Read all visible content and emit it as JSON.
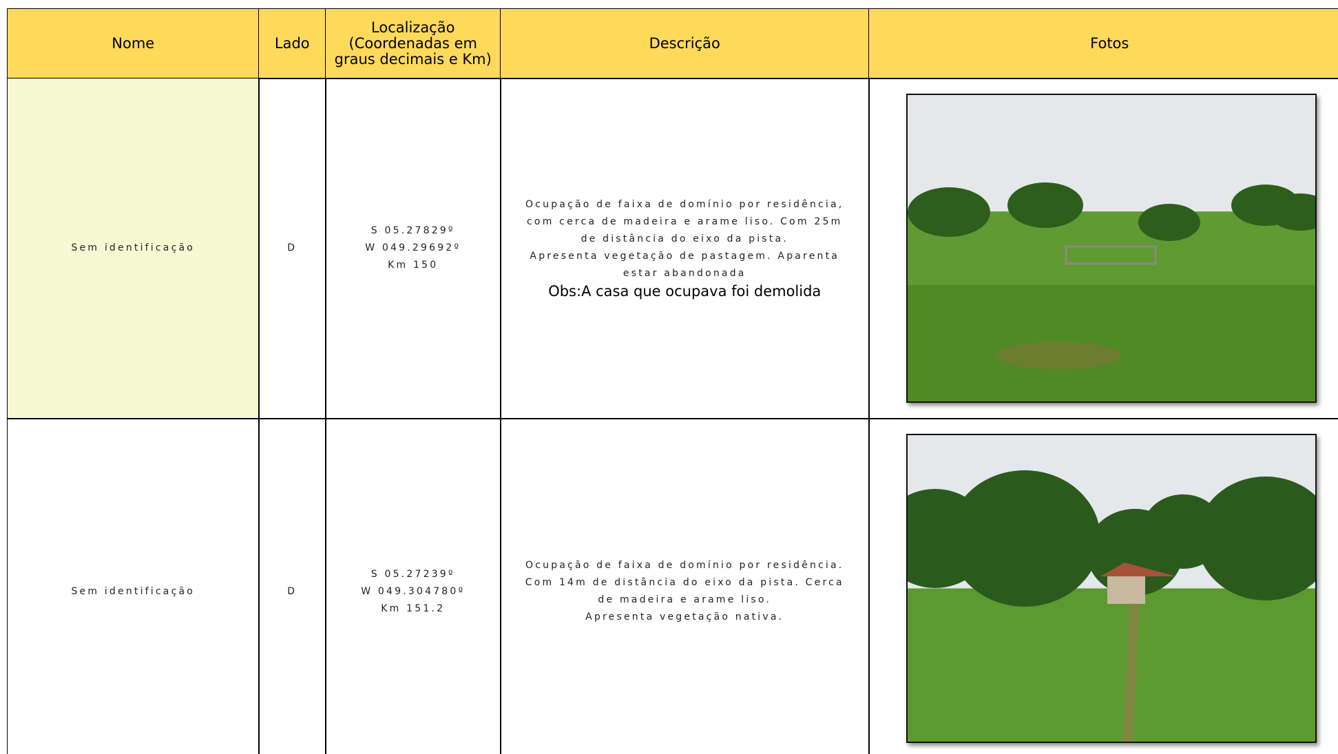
{
  "header": {
    "columns": [
      "Nome",
      "Lado",
      "Localização (Coordenadas em graus decimais e Km)",
      "Descrição",
      "Fotos"
    ]
  },
  "rows": [
    {
      "nome": "Sem identificação",
      "lado": "D",
      "localizacao": [
        "S 05.27829º",
        "W 049.29692º",
        "Km 150"
      ],
      "descricao": [
        "Ocupação de faixa de domínio por residência,",
        "com cerca de madeira e arame liso.  Com 25m",
        "de distância do eixo da pista.",
        "Apresenta vegetação de pastagem. Aparenta",
        "estar abandonada"
      ],
      "obs": "Obs:A casa que ocupava foi demolida"
    },
    {
      "nome": "Sem identificação",
      "lado": "D",
      "localizacao": [
        "S 05.27239º",
        "W 049.304780º",
        "Km 151.2"
      ],
      "descricao": [
        "Ocupação de faixa de domínio por residência.",
        "Com 14m de distância do eixo da pista. Cerca",
        "de madeira e arame liso.",
        "Apresenta vegetação nativa."
      ]
    }
  ]
}
